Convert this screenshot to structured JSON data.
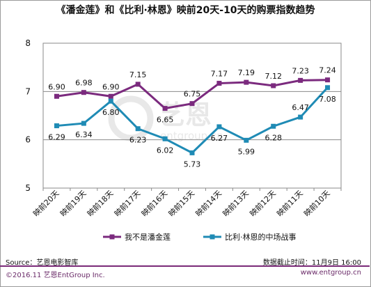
{
  "chart_data": {
    "type": "line",
    "title": "《潘金莲》和《比利·林恩》映前20天-10天的购票指数趋势",
    "categories": [
      "映前20天",
      "映前19天",
      "映前18天",
      "映前17天",
      "映前16天",
      "映前15天",
      "映前14天",
      "映前13天",
      "映前12天",
      "映前11天",
      "映前10天"
    ],
    "ylim": [
      5,
      8
    ],
    "yticks": [
      "5",
      "6",
      "7",
      "8"
    ],
    "grid": true,
    "legend_position": "bottom",
    "series": [
      {
        "name": "我不是潘金莲",
        "color": "#7b2a7e",
        "values": [
          6.9,
          6.98,
          6.9,
          7.15,
          6.65,
          6.75,
          7.17,
          7.19,
          7.12,
          7.23,
          7.24
        ],
        "labels": [
          "6.90",
          "6.98",
          "6.90",
          "7.15",
          "6.65",
          "6.75",
          "7.17",
          "7.19",
          "7.12",
          "7.23",
          "7.24"
        ]
      },
      {
        "name": "比利·林恩的中场战事",
        "color": "#1f8bb5",
        "values": [
          6.29,
          6.34,
          6.8,
          6.23,
          6.02,
          5.73,
          6.27,
          5.99,
          6.28,
          6.47,
          7.08
        ],
        "labels": [
          "6.29",
          "6.34",
          "6.80",
          "6.23",
          "6.02",
          "5.73",
          "6.27",
          "5.99",
          "6.28",
          "6.47",
          "7.08"
        ]
      }
    ]
  },
  "watermark": {
    "brand_cn": "艺恩",
    "brand_en": "entgroup.cn"
  },
  "footer": {
    "source": "Source：艺恩电影智库",
    "cutoff": "数据截止时间：11月9日 16:00",
    "copyright": "©2016.11 艺恩EntGroup Inc.",
    "website": "www.entgroup.cn"
  }
}
